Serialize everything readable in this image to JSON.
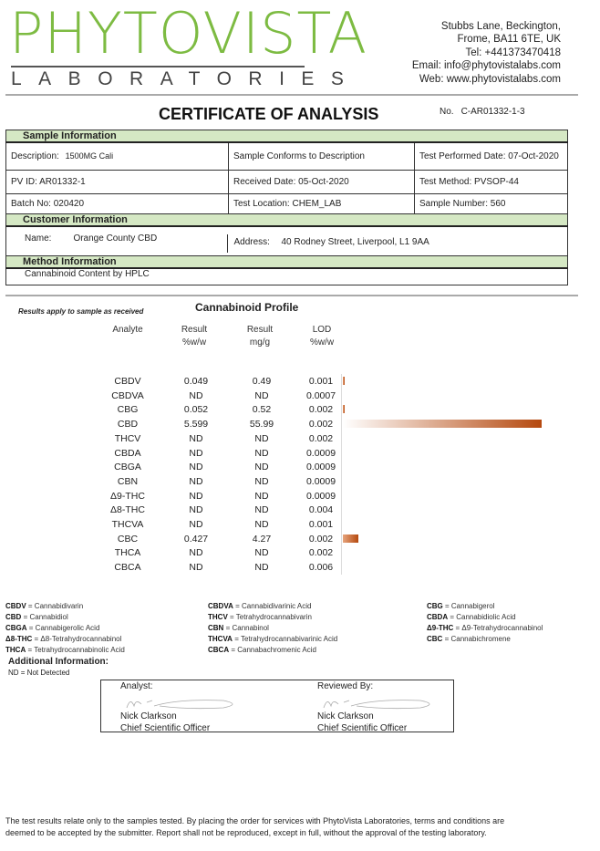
{
  "header": {
    "logo_main": "PHYTOVISTA",
    "logo_sub": "LABORATORIES",
    "address_lines": [
      "Stubbs Lane, Beckington,",
      "Frome, BA11 6TE, UK",
      "Tel: +441373470418",
      "Email: info@phytovistalabs.com",
      "Web: www.phytovistalabs.com"
    ],
    "title": "CERTIFICATE OF ANALYSIS",
    "no_label": "No.",
    "no_value": "C-AR01332-1-3"
  },
  "sample_info": {
    "heading": "Sample Information",
    "description": "Description:",
    "description_value": "1500MG Cali",
    "conforms": "Sample Conforms to Description",
    "test_performed": "Test Performed Date: 07-Oct-2020",
    "pv_id": "PV ID: AR01332-1",
    "received": "Received Date:  05-Oct-2020",
    "test_method": "Test Method: PVSOP-44",
    "batch": "Batch No: 020420",
    "location": "Test Location: CHEM_LAB",
    "sample_number": "Sample Number:  560"
  },
  "customer_info": {
    "heading": "Customer Information",
    "name_label": "Name:",
    "name_value": "Orange County CBD",
    "address_label": "Address:",
    "address_value": "40 Rodney Street, Liverpool, L1 9AA"
  },
  "method_info": {
    "heading": "Method Information",
    "value": "Cannabinoid Content by HPLC"
  },
  "profile": {
    "title": "Cannabinoid Profile",
    "note": "Results apply to sample as received",
    "columns": [
      [
        "Analyte",
        ""
      ],
      [
        "Result",
        "%w/w"
      ],
      [
        "Result",
        "mg/g"
      ],
      [
        "LOD",
        "%w/w"
      ]
    ],
    "bar_color": "#b5490f",
    "rows": [
      {
        "analyte": "CBDV",
        "pct": "0.049",
        "mg": "0.49",
        "lod": "0.001",
        "value": 0.049
      },
      {
        "analyte": "CBDVA",
        "pct": "ND",
        "mg": "ND",
        "lod": "0.0007",
        "value": 0
      },
      {
        "analyte": "CBG",
        "pct": "0.052",
        "mg": "0.52",
        "lod": "0.002",
        "value": 0.052
      },
      {
        "analyte": "CBD",
        "pct": "5.599",
        "mg": "55.99",
        "lod": "0.002",
        "value": 5.599
      },
      {
        "analyte": "THCV",
        "pct": "ND",
        "mg": "ND",
        "lod": "0.002",
        "value": 0
      },
      {
        "analyte": "CBDA",
        "pct": "ND",
        "mg": "ND",
        "lod": "0.0009",
        "value": 0
      },
      {
        "analyte": "CBGA",
        "pct": "ND",
        "mg": "ND",
        "lod": "0.0009",
        "value": 0
      },
      {
        "analyte": "CBN",
        "pct": "ND",
        "mg": "ND",
        "lod": "0.0009",
        "value": 0
      },
      {
        "analyte": "Δ9-THC",
        "pct": "ND",
        "mg": "ND",
        "lod": "0.0009",
        "value": 0
      },
      {
        "analyte": "Δ8-THC",
        "pct": "ND",
        "mg": "ND",
        "lod": "0.004",
        "value": 0
      },
      {
        "analyte": "THCVA",
        "pct": "ND",
        "mg": "ND",
        "lod": "0.001",
        "value": 0
      },
      {
        "analyte": "CBC",
        "pct": "0.427",
        "mg": "4.27",
        "lod": "0.002",
        "value": 0.427
      },
      {
        "analyte": "THCA",
        "pct": "ND",
        "mg": "ND",
        "lod": "0.002",
        "value": 0
      },
      {
        "analyte": "CBCA",
        "pct": "ND",
        "mg": "ND",
        "lod": "0.006",
        "value": 0
      }
    ]
  },
  "abbreviations": [
    [
      [
        "CBDV",
        " = Cannabidivarin"
      ],
      [
        "CBD",
        " = Cannabidiol"
      ],
      [
        "CBGA",
        " = Cannabigerolic Acid"
      ],
      [
        "Δ8-THC",
        " = Δ8-Tetrahydrocannabinol"
      ],
      [
        "THCA",
        " = Tetrahydrocannabinolic Acid"
      ]
    ],
    [
      [
        "CBDVA",
        " = Cannabidivarinic Acid"
      ],
      [
        "THCV",
        " = Tetrahydrocannabivarin"
      ],
      [
        "CBN",
        " = Cannabinol"
      ],
      [
        "THCVA",
        " = Tetrahydrocannabivarinic Acid"
      ],
      [
        "CBCA",
        " = Cannabachromenic Acid"
      ]
    ],
    [
      [
        "CBG",
        " = Cannabigerol"
      ],
      [
        "CBDA",
        " = Cannabidiolic Acid"
      ],
      [
        "Δ9-THC",
        " = Δ9-Tetrahydrocannabinol"
      ],
      [
        "CBC",
        " = Cannabichromene"
      ]
    ]
  ],
  "additional": {
    "heading": "Additional Information:",
    "nd": "ND = Not Detected"
  },
  "signatures": {
    "analyst_label": "Analyst:",
    "analyst_name": "Nick Clarkson",
    "analyst_title": "Chief Scientific Officer",
    "reviewer_label": "Reviewed By:",
    "reviewer_name": "Nick Clarkson",
    "reviewer_title": "Chief Scientific Officer"
  },
  "footer": [
    "The test results relate only to the samples tested.  By placing the order for services with PhytoVista Laboratories, terms and conditions are",
    "deemed to be accepted by the submitter. Report shall not be reproduced, except in full, without the approval of the testing laboratory."
  ]
}
